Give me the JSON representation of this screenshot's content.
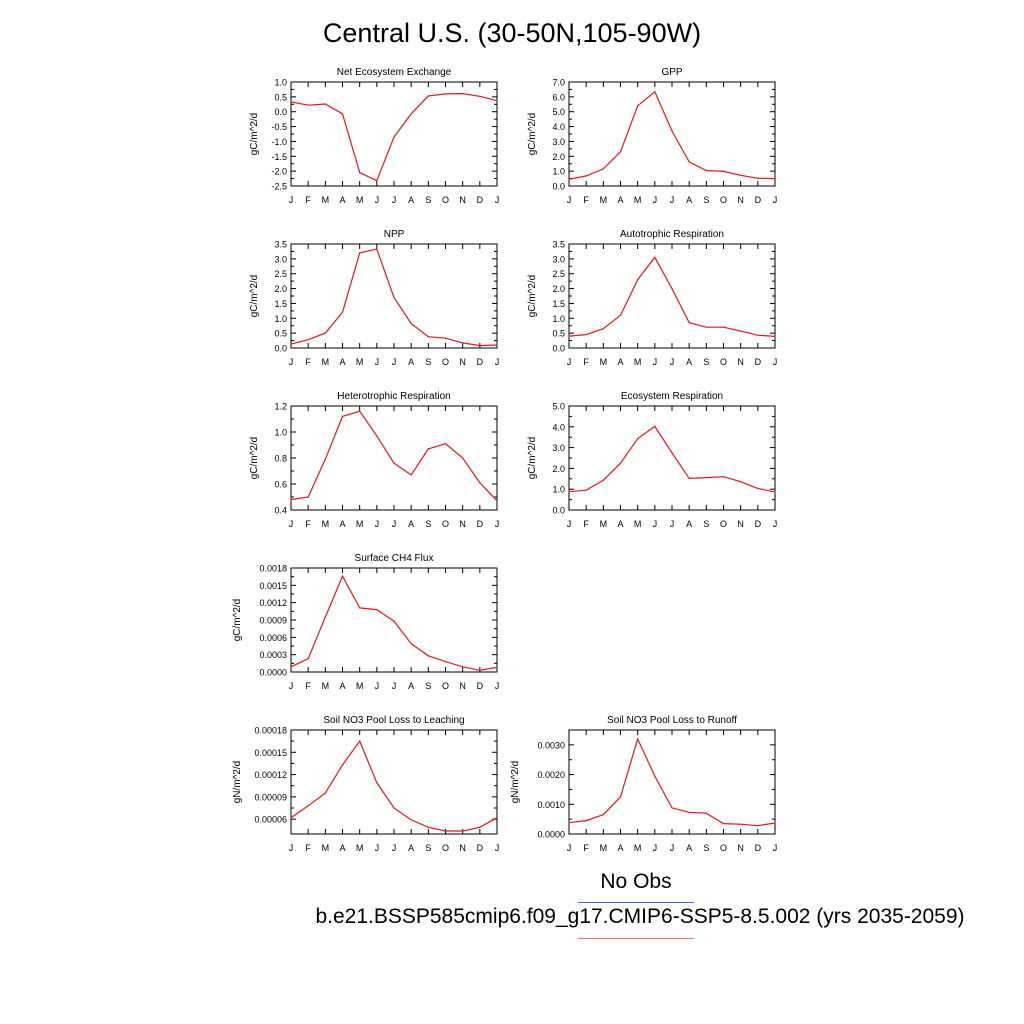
{
  "figure": {
    "title": "Central U.S. (30-50N,105-90W)",
    "legend": {
      "obs_label": "No Obs",
      "run_label": "b.e21.BSSP585cmip6.f09_g17.CMIP6-SSP5-8.5.002 (yrs 2035-2059)",
      "obs_color": "#4b5be0",
      "run_color": "#f07078"
    },
    "line_color": "#e8151b"
  },
  "chart_data": [
    {
      "type": "line",
      "title": "Net Ecosystem Exchange",
      "ylabel": "gC/m^2/d",
      "categories": [
        "J",
        "F",
        "M",
        "A",
        "M",
        "J",
        "J",
        "A",
        "S",
        "O",
        "N",
        "D",
        "J"
      ],
      "values": [
        0.33,
        0.22,
        0.26,
        -0.07,
        -2.05,
        -2.32,
        -0.85,
        -0.07,
        0.53,
        0.6,
        0.61,
        0.52,
        0.37
      ],
      "ylim": [
        -2.5,
        1.0
      ],
      "yticks": [
        "1.0",
        "0.5",
        "0.0",
        "-0.5",
        "-1.0",
        "-1.5",
        "-2.0",
        "-2.5"
      ],
      "ytick_values": [
        1.0,
        0.5,
        0.0,
        -0.5,
        -1.0,
        -1.5,
        -2.0,
        -2.5
      ]
    },
    {
      "type": "line",
      "title": "GPP",
      "ylabel": "gC/m^2/d",
      "categories": [
        "J",
        "F",
        "M",
        "A",
        "M",
        "J",
        "J",
        "A",
        "S",
        "O",
        "N",
        "D",
        "J"
      ],
      "values": [
        0.45,
        0.68,
        1.15,
        2.3,
        5.4,
        6.35,
        3.7,
        1.62,
        1.04,
        0.98,
        0.72,
        0.52,
        0.5
      ],
      "ylim": [
        0.0,
        7.0
      ],
      "yticks": [
        "7.0",
        "6.0",
        "5.0",
        "4.0",
        "3.0",
        "2.0",
        "1.0",
        "0.0"
      ],
      "ytick_values": [
        7.0,
        6.0,
        5.0,
        4.0,
        3.0,
        2.0,
        1.0,
        0.0
      ]
    },
    {
      "type": "line",
      "title": "NPP",
      "ylabel": "gC/m^2/d",
      "categories": [
        "J",
        "F",
        "M",
        "A",
        "M",
        "J",
        "J",
        "A",
        "S",
        "O",
        "N",
        "D",
        "J"
      ],
      "values": [
        0.13,
        0.28,
        0.5,
        1.2,
        3.2,
        3.33,
        1.7,
        0.82,
        0.38,
        0.33,
        0.17,
        0.08,
        0.1
      ],
      "ylim": [
        0.0,
        3.5
      ],
      "yticks": [
        "3.5",
        "3.0",
        "2.5",
        "2.0",
        "1.5",
        "1.0",
        "0.5",
        "0.0"
      ],
      "ytick_values": [
        3.5,
        3.0,
        2.5,
        2.0,
        1.5,
        1.0,
        0.5,
        0.0
      ]
    },
    {
      "type": "line",
      "title": "Autotrophic Respiration",
      "ylabel": "gC/m^2/d",
      "categories": [
        "J",
        "F",
        "M",
        "A",
        "M",
        "J",
        "J",
        "A",
        "S",
        "O",
        "N",
        "D",
        "J"
      ],
      "values": [
        0.4,
        0.45,
        0.65,
        1.1,
        2.3,
        3.05,
        2.0,
        0.85,
        0.7,
        0.7,
        0.57,
        0.43,
        0.39
      ],
      "ylim": [
        0.0,
        3.5
      ],
      "yticks": [
        "3.5",
        "3.0",
        "2.5",
        "2.0",
        "1.5",
        "1.0",
        "0.5",
        "0.0"
      ],
      "ytick_values": [
        3.5,
        3.0,
        2.5,
        2.0,
        1.5,
        1.0,
        0.5,
        0.0
      ]
    },
    {
      "type": "line",
      "title": "Heterotrophic Respiration",
      "ylabel": "gC/m^2/d",
      "categories": [
        "J",
        "F",
        "M",
        "A",
        "M",
        "J",
        "J",
        "A",
        "S",
        "O",
        "N",
        "D",
        "J"
      ],
      "values": [
        0.48,
        0.5,
        0.79,
        1.12,
        1.16,
        0.97,
        0.76,
        0.67,
        0.87,
        0.91,
        0.8,
        0.61,
        0.47
      ],
      "ylim": [
        0.4,
        1.2
      ],
      "yticks": [
        "1.2",
        "1.0",
        "0.8",
        "0.6",
        "0.4"
      ],
      "ytick_values": [
        1.2,
        1.0,
        0.8,
        0.6,
        0.4
      ]
    },
    {
      "type": "line",
      "title": "Ecosystem Respiration",
      "ylabel": "gC/m^2/d",
      "categories": [
        "J",
        "F",
        "M",
        "A",
        "M",
        "J",
        "J",
        "A",
        "S",
        "O",
        "N",
        "D",
        "J"
      ],
      "values": [
        0.88,
        0.95,
        1.43,
        2.25,
        3.43,
        4.02,
        2.75,
        1.52,
        1.56,
        1.6,
        1.36,
        1.04,
        0.86
      ],
      "ylim": [
        0.0,
        5.0
      ],
      "yticks": [
        "5.0",
        "4.0",
        "3.0",
        "2.0",
        "1.0",
        "0.0"
      ],
      "ytick_values": [
        5.0,
        4.0,
        3.0,
        2.0,
        1.0,
        0.0
      ]
    },
    {
      "type": "line",
      "title": "Surface CH4 Flux",
      "ylabel": "gC/m^2/d",
      "categories": [
        "J",
        "F",
        "M",
        "A",
        "M",
        "J",
        "J",
        "A",
        "S",
        "O",
        "N",
        "D",
        "J"
      ],
      "values": [
        9e-05,
        0.00023,
        0.00095,
        0.00166,
        0.00111,
        0.00108,
        0.00088,
        0.00049,
        0.00028,
        0.00018,
        9e-05,
        3e-05,
        8e-05
      ],
      "ylim": [
        0.0,
        0.0018
      ],
      "yticks": [
        "0.0018",
        "0.0015",
        "0.0012",
        "0.0009",
        "0.0006",
        "0.0003",
        "0.0000"
      ],
      "ytick_values": [
        0.0018,
        0.0015,
        0.0012,
        0.0009,
        0.0006,
        0.0003,
        0.0
      ]
    },
    {
      "type": "line",
      "title": "Soil NO3 Pool Loss to Leaching",
      "ylabel": "gN/m^2/d",
      "categories": [
        "J",
        "F",
        "M",
        "A",
        "M",
        "J",
        "J",
        "A",
        "S",
        "O",
        "N",
        "D",
        "J"
      ],
      "values": [
        6.2e-05,
        7.8e-05,
        9.5e-05,
        0.000133,
        0.000165,
        0.000109,
        7.5e-05,
        5.9e-05,
        4.9e-05,
        4.4e-05,
        4.4e-05,
        4.9e-05,
        6.2e-05
      ],
      "ylim": [
        4e-05,
        0.00018
      ],
      "yticks": [
        "0.00018",
        "0.00015",
        "0.00012",
        "0.00009",
        "0.00006"
      ],
      "ytick_values": [
        0.00018,
        0.00015,
        0.00012,
        9e-05,
        6e-05
      ]
    },
    {
      "type": "line",
      "title": "Soil NO3 Pool Loss to Runoff",
      "ylabel": "gN/m^2/d",
      "categories": [
        "J",
        "F",
        "M",
        "A",
        "M",
        "J",
        "J",
        "A",
        "S",
        "O",
        "N",
        "D",
        "J"
      ],
      "values": [
        0.00038,
        0.00045,
        0.00065,
        0.00125,
        0.0032,
        0.00195,
        0.00088,
        0.00073,
        0.0007,
        0.00035,
        0.00033,
        0.00028,
        0.00037
      ],
      "ylim": [
        0.0,
        0.0035
      ],
      "yticks": [
        "0.0030",
        "0.0020",
        "0.0010",
        "0.0000"
      ],
      "ytick_values": [
        0.003,
        0.002,
        0.001,
        0.0
      ]
    }
  ]
}
